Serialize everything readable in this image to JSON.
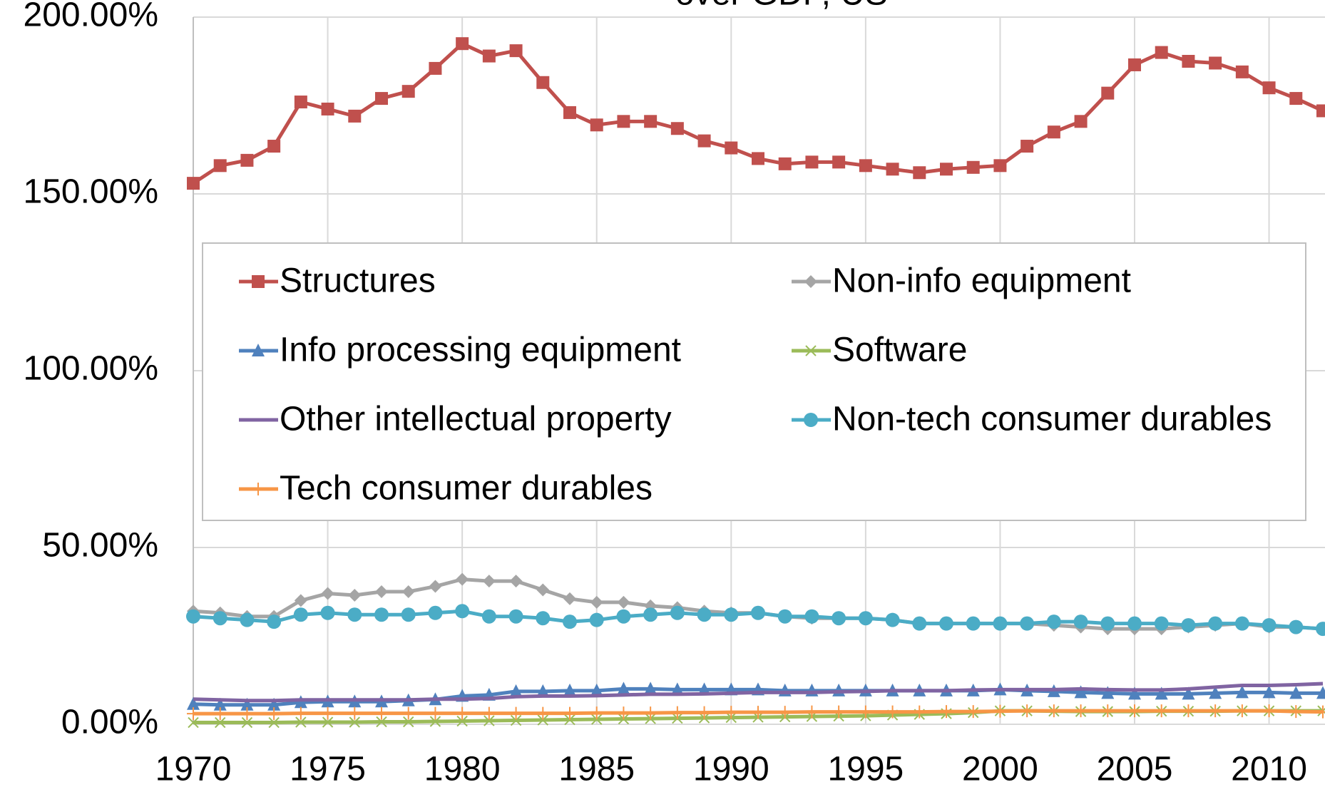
{
  "chart_data": {
    "type": "line",
    "title": "over GDP, US",
    "x": [
      1970,
      1971,
      1972,
      1973,
      1974,
      1975,
      1976,
      1977,
      1978,
      1979,
      1980,
      1981,
      1982,
      1983,
      1984,
      1985,
      1986,
      1987,
      1988,
      1989,
      1990,
      1991,
      1992,
      1993,
      1994,
      1995,
      1996,
      1997,
      1998,
      1999,
      2000,
      2001,
      2002,
      2003,
      2004,
      2005,
      2006,
      2007,
      2008,
      2009,
      2010,
      2011,
      2012
    ],
    "xlim": [
      1970,
      2012
    ],
    "xticks": [
      1970,
      1975,
      1980,
      1985,
      1990,
      1995,
      2000,
      2005,
      2010
    ],
    "ylim": [
      0,
      200
    ],
    "yticks": [
      {
        "value": 0,
        "label": "0.00%"
      },
      {
        "value": 50,
        "label": "50.00%"
      },
      {
        "value": 100,
        "label": "100.00%"
      },
      {
        "value": 150,
        "label": "150.00%"
      },
      {
        "value": 200,
        "label": "200.00%"
      }
    ],
    "grid": true,
    "legend": "center",
    "series": [
      {
        "name": "Structures",
        "color": "#c0504d",
        "marker": "square",
        "values": [
          153,
          158,
          159.5,
          163.5,
          176,
          174,
          172,
          177,
          179,
          185.5,
          192.5,
          189,
          190.5,
          181.5,
          173,
          169.5,
          170.5,
          170.5,
          168.5,
          165,
          163,
          160,
          158.5,
          159,
          159,
          158,
          157,
          156,
          157,
          157.5,
          158,
          163.5,
          167.5,
          170.5,
          178.5,
          186.5,
          190,
          187.5,
          187,
          184.5,
          180,
          177,
          173.5
        ]
      },
      {
        "name": "Non-info equipment",
        "color": "#a5a5a5",
        "marker": "diamond",
        "values": [
          32,
          31.5,
          30.5,
          30.5,
          35,
          37,
          36.5,
          37.5,
          37.5,
          39,
          41,
          40.5,
          40.5,
          38,
          35.5,
          34.5,
          34.5,
          33.5,
          33,
          32,
          31.5,
          31.5,
          30.5,
          30,
          30,
          30,
          29.5,
          28.5,
          28.5,
          28.5,
          28.5,
          28.5,
          28,
          27.5,
          27,
          27,
          27,
          27.5,
          28,
          28.5,
          27.5,
          27.5,
          27
        ]
      },
      {
        "name": "Info processing equipment",
        "color": "#4f81bd",
        "marker": "triangle",
        "values": [
          5.7,
          5.5,
          5.5,
          5.5,
          6.2,
          6.4,
          6.4,
          6.4,
          6.7,
          7,
          8,
          8.3,
          9.3,
          9.3,
          9.5,
          9.5,
          10,
          10,
          9.8,
          9.8,
          9.8,
          9.8,
          9.5,
          9.5,
          9.5,
          9.5,
          9.5,
          9.5,
          9.5,
          9.5,
          9.8,
          9.5,
          9.3,
          9,
          8.8,
          8.6,
          8.6,
          8.6,
          8.8,
          9,
          9,
          8.8,
          8.8
        ]
      },
      {
        "name": "Software",
        "color": "#9bbb59",
        "marker": "x",
        "values": [
          0.5,
          0.5,
          0.5,
          0.5,
          0.6,
          0.6,
          0.6,
          0.7,
          0.7,
          0.8,
          0.9,
          1,
          1.1,
          1.2,
          1.3,
          1.4,
          1.5,
          1.6,
          1.7,
          1.8,
          1.9,
          2,
          2.1,
          2.2,
          2.3,
          2.4,
          2.6,
          2.8,
          3,
          3.3,
          3.8,
          3.8,
          3.7,
          3.6,
          3.6,
          3.6,
          3.7,
          3.7,
          3.7,
          3.8,
          3.8,
          3.8,
          3.8
        ]
      },
      {
        "name": "Other intellectual property",
        "color": "#8064a2",
        "marker": "none",
        "values": [
          7.1,
          6.9,
          6.7,
          6.7,
          6.9,
          6.9,
          6.9,
          6.9,
          6.9,
          7.1,
          7.1,
          7.3,
          7.8,
          8,
          8,
          8.1,
          8.3,
          8.5,
          8.5,
          8.6,
          8.8,
          9,
          9,
          9,
          9.2,
          9.3,
          9.5,
          9.5,
          9.5,
          9.7,
          9.8,
          9.8,
          9.8,
          10,
          9.8,
          9.7,
          9.7,
          10,
          10.5,
          11,
          11,
          11.2,
          11.5
        ]
      },
      {
        "name": "Non-tech consumer durables",
        "color": "#4bacc6",
        "marker": "circle",
        "values": [
          30.5,
          30,
          29.5,
          29,
          31,
          31.5,
          31,
          31,
          31,
          31.5,
          32,
          30.5,
          30.5,
          30,
          29,
          29.5,
          30.5,
          31,
          31.5,
          31,
          31,
          31.5,
          30.5,
          30.5,
          30,
          30,
          29.5,
          28.5,
          28.5,
          28.5,
          28.5,
          28.5,
          29,
          29,
          28.5,
          28.5,
          28.5,
          28,
          28.5,
          28.5,
          28,
          27.5,
          27
        ]
      },
      {
        "name": "Tech consumer durables",
        "color": "#f79646",
        "marker": "plus",
        "values": [
          3,
          3,
          3,
          3,
          3.1,
          3.1,
          3.1,
          3.1,
          3.1,
          3.1,
          3.1,
          3.1,
          3.1,
          3.1,
          3.1,
          3.2,
          3.2,
          3.2,
          3.3,
          3.3,
          3.4,
          3.4,
          3.4,
          3.5,
          3.5,
          3.5,
          3.5,
          3.5,
          3.6,
          3.6,
          3.7,
          3.8,
          3.8,
          3.8,
          3.8,
          3.8,
          3.8,
          3.8,
          3.8,
          3.8,
          3.8,
          3.6,
          3.5
        ]
      }
    ]
  }
}
